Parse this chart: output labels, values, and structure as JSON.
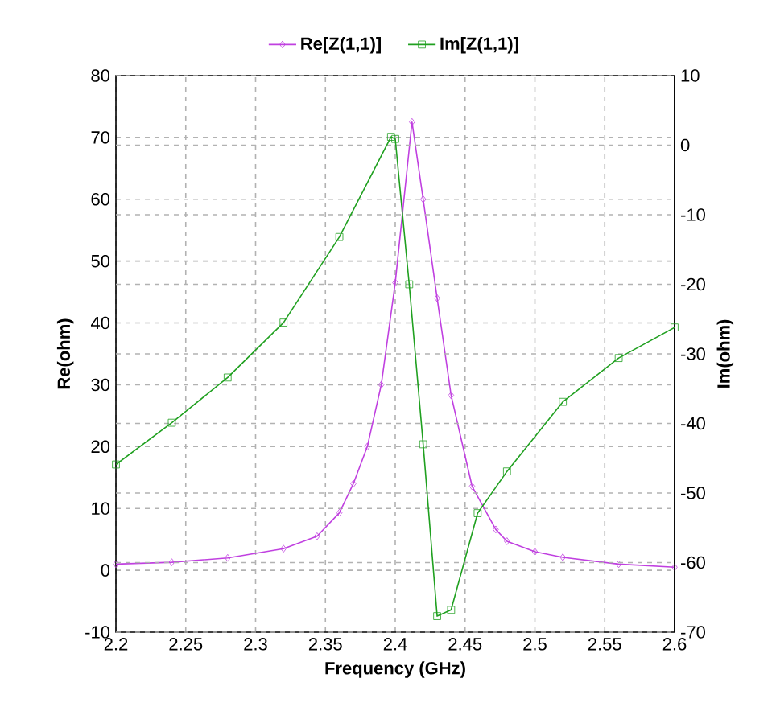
{
  "chart_data": {
    "type": "line",
    "xlabel": "Frequency (GHz)",
    "ylabel": "Re(ohm)",
    "y2label": "Im(ohm)",
    "xlim": [
      2.2,
      2.6
    ],
    "xticks": [
      2.2,
      2.25,
      2.3,
      2.35,
      2.4,
      2.45,
      2.5,
      2.55,
      2.6
    ],
    "ylim": [
      -10,
      80
    ],
    "yticks": [
      -10,
      0,
      10,
      20,
      30,
      40,
      50,
      60,
      70,
      80
    ],
    "y2lim": [
      -70,
      10
    ],
    "y2ticks": [
      -70,
      -60,
      -50,
      -40,
      -30,
      -20,
      -10,
      0,
      10
    ],
    "grid": true,
    "legend": "top",
    "line_style": "solid",
    "series": [
      {
        "name": "Re[Z(1,1)]",
        "color": "#c040e0",
        "marker": "diamond",
        "x": [
          2.2,
          2.24,
          2.28,
          2.32,
          2.344,
          2.36,
          2.37,
          2.38,
          2.39,
          2.4,
          2.412,
          2.42,
          2.43,
          2.44,
          2.455,
          2.472,
          2.48,
          2.5,
          2.52,
          2.56,
          2.6
        ],
        "values": [
          1,
          1.3,
          2,
          3.5,
          5.5,
          9.3,
          14,
          20,
          30,
          46.5,
          72.5,
          60,
          44,
          28.3,
          13.6,
          6.6,
          4.7,
          3,
          2.1,
          1,
          0.5
        ]
      },
      {
        "name": "Im[Z(1,1)]",
        "color": "#20a020",
        "marker": "square",
        "axis": "y2",
        "x": [
          2.2,
          2.24,
          2.28,
          2.32,
          2.36,
          2.397,
          2.4,
          2.41,
          2.42,
          2.43,
          2.44,
          2.459,
          2.48,
          2.52,
          2.56,
          2.6
        ],
        "values": [
          -45.9,
          -39.9,
          -33.4,
          -25.5,
          -13.2,
          1.2,
          0.9,
          -20,
          -43,
          -67.7,
          -66.8,
          -52.9,
          -46.9,
          -36.9,
          -30.6,
          -26.2
        ]
      }
    ]
  }
}
